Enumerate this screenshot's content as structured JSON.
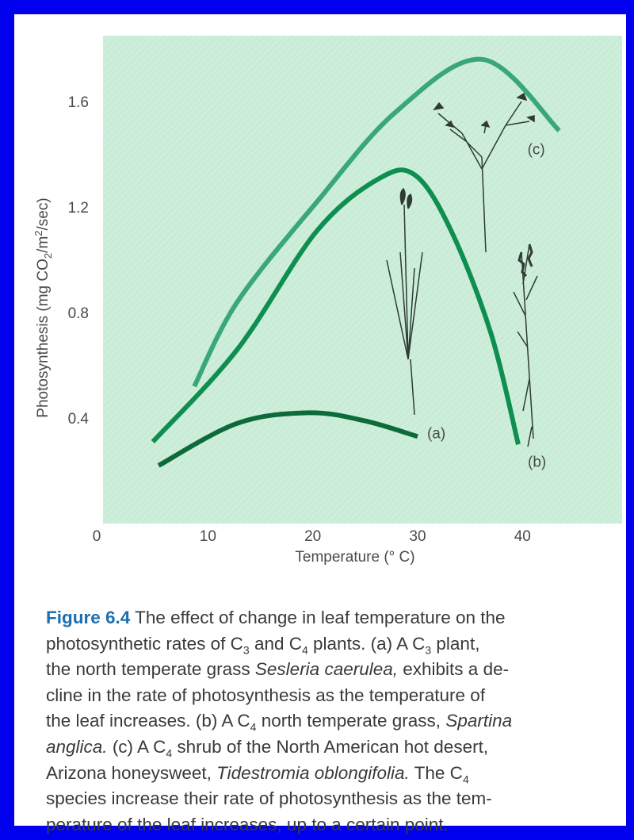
{
  "chart_data": {
    "type": "line",
    "x_label": "Temperature (° C)",
    "y_label": [
      "Photosynthesis (mg CO",
      "2",
      "/m",
      "2",
      "/sec)"
    ],
    "xlim": [
      0,
      49.5
    ],
    "ylim": [
      0,
      1.85
    ],
    "xticks": [
      0,
      10,
      20,
      30,
      40
    ],
    "yticks": [
      0.4,
      0.8,
      1.2,
      1.6
    ],
    "background": "#c9ecd7",
    "series": [
      {
        "name": "(a)",
        "color": "#0d6a3a",
        "x": [
          5.3,
          12.8,
          19.6,
          24.9,
          30
        ],
        "values": [
          0.22,
          0.38,
          0.42,
          0.39,
          0.33
        ]
      },
      {
        "name": "(b)",
        "color": "#0e8f4f",
        "x": [
          4.75,
          12.8,
          20.4,
          26.4,
          29.8,
          33.2,
          37,
          39.6
        ],
        "values": [
          0.31,
          0.66,
          1.11,
          1.31,
          1.32,
          1.11,
          0.72,
          0.3
        ]
      },
      {
        "name": "(c)",
        "color": "#3aa876",
        "x": [
          8.7,
          12.8,
          20.4,
          27.9,
          36.2,
          43.5
        ],
        "values": [
          0.52,
          0.84,
          1.22,
          1.56,
          1.76,
          1.49
        ]
      }
    ]
  },
  "caption": {
    "lines": [
      [
        "Figure 6.4",
        " The effect of change in leaf temperature on the"
      ],
      [
        "photosynthetic rates of C",
        "3",
        " and C",
        "4",
        " plants. (a) A C",
        "3",
        " plant,"
      ],
      [
        "the north temperate grass ",
        "Sesleria caerulea,",
        " exhibits a de-"
      ],
      [
        "cline in the rate of photosynthesis as the temperature of"
      ],
      [
        "the leaf increases. (b) A C",
        "4",
        " north temperate grass, ",
        "Spartina"
      ],
      [
        "anglica.",
        " (c) A C",
        "4",
        " shrub of the North American hot desert,"
      ],
      [
        "Arizona honeysweet, ",
        "Tidestromia oblongifolia.",
        " The C",
        "4"
      ],
      [
        "species increase their rate of photosynthesis as the tem-"
      ],
      [
        "perature of the leaf increases, up to a certain point."
      ]
    ]
  }
}
